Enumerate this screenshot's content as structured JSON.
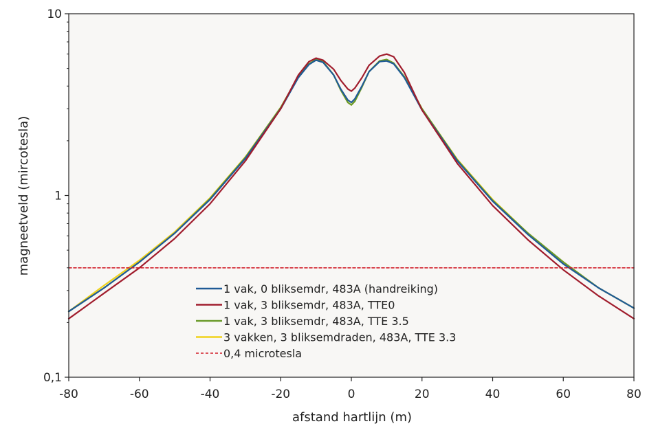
{
  "chart_data": {
    "type": "line",
    "xlabel": "afstand hartlijn (m)",
    "ylabel": "magneetveld (mircotesla)",
    "xlim": [
      -80,
      80
    ],
    "ylim": [
      0.1,
      10
    ],
    "yscale": "log",
    "x_ticks": [
      "-80",
      "-60",
      "-40",
      "-20",
      "0",
      "20",
      "40",
      "60",
      "80"
    ],
    "y_ticks": [
      "0,1",
      "1",
      "10"
    ],
    "grid": false,
    "legend_position": "bottom-center",
    "x": [
      -80,
      -70,
      -60,
      -50,
      -40,
      -30,
      -20,
      -15,
      -12,
      -10,
      -8,
      -5,
      -3,
      -1,
      0,
      1,
      3,
      5,
      8,
      10,
      12,
      15,
      20,
      30,
      40,
      50,
      60,
      70,
      80
    ],
    "series": [
      {
        "name": "1 vak, 0 bliksemdr, 483A (handreiking)",
        "color": "#1f5a96",
        "values": [
          0.23,
          0.31,
          0.43,
          0.62,
          0.95,
          1.6,
          3.0,
          4.45,
          5.25,
          5.55,
          5.4,
          4.6,
          3.85,
          3.35,
          3.25,
          3.4,
          4.0,
          4.8,
          5.45,
          5.5,
          5.3,
          4.45,
          2.95,
          1.55,
          0.93,
          0.61,
          0.42,
          0.31,
          0.24
        ]
      },
      {
        "name": "1 vak, 3 bliksemdr, 483A, TTE0",
        "color": "#a01c2c",
        "values": [
          0.21,
          0.29,
          0.4,
          0.58,
          0.9,
          1.55,
          3.0,
          4.6,
          5.45,
          5.7,
          5.55,
          4.95,
          4.3,
          3.85,
          3.75,
          3.9,
          4.45,
          5.2,
          5.85,
          6.0,
          5.8,
          4.75,
          2.95,
          1.5,
          0.88,
          0.57,
          0.39,
          0.28,
          0.21
        ]
      },
      {
        "name": "1 vak, 3 bliksemdr, 483A, TTE 3.5",
        "color": "#6a9a2a",
        "values": [
          0.23,
          0.31,
          0.43,
          0.62,
          0.96,
          1.62,
          3.05,
          4.5,
          5.3,
          5.6,
          5.45,
          4.6,
          3.8,
          3.25,
          3.15,
          3.3,
          3.95,
          4.8,
          5.5,
          5.6,
          5.35,
          4.5,
          3.0,
          1.57,
          0.94,
          0.62,
          0.43,
          0.31,
          0.24
        ]
      },
      {
        "name": "3 vakken, 3 bliksemdraden, 483A, TTE 3.3",
        "color": "#f0d21a",
        "values": [
          0.23,
          0.32,
          0.44,
          0.63,
          0.97,
          1.63,
          3.05,
          4.5,
          5.3,
          5.6,
          5.45,
          4.6,
          3.8,
          3.25,
          3.15,
          3.3,
          3.95,
          4.8,
          5.5,
          5.6,
          5.35,
          4.5,
          3.0,
          1.58,
          0.95,
          0.62,
          0.43,
          0.31,
          0.24
        ]
      },
      {
        "name": "0,4 microtesla",
        "color": "#d11f2a",
        "dashed": true,
        "values": [
          0.4,
          0.4,
          0.4,
          0.4,
          0.4,
          0.4,
          0.4,
          0.4,
          0.4,
          0.4,
          0.4,
          0.4,
          0.4,
          0.4,
          0.4,
          0.4,
          0.4,
          0.4,
          0.4,
          0.4,
          0.4,
          0.4,
          0.4,
          0.4,
          0.4,
          0.4,
          0.4,
          0.4,
          0.4
        ]
      }
    ]
  }
}
